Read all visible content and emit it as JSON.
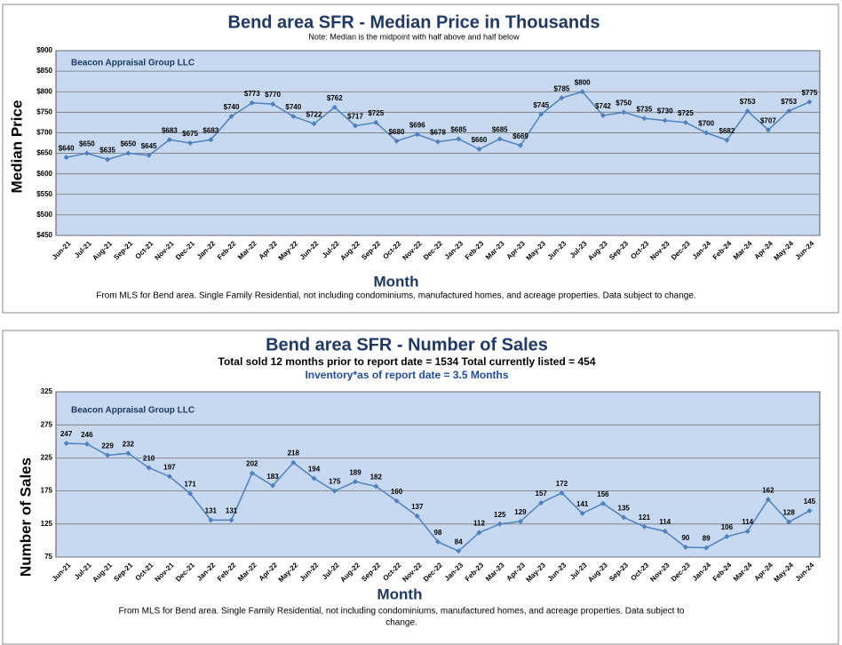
{
  "chart_data": [
    {
      "type": "line",
      "title": "Bend area SFR - Median Price in Thousands",
      "subtitle": "Note: Median is the midpoint with half above and half below",
      "watermark": "Beacon Appraisal Group LLC",
      "ylabel": "Median Price",
      "xlabel": "Month",
      "footnote": "From MLS for Bend area.  Single Family Residential, not including condominiums, manufactured homes, and acreage properties.  Data subject to change.",
      "categories": [
        "Jun-21",
        "Jul-21",
        "Aug-21",
        "Sep-21",
        "Oct-21",
        "Nov-21",
        "Dec-21",
        "Jan-22",
        "Feb-22",
        "Mar-22",
        "Apr-22",
        "May-22",
        "Jun-22",
        "Jul-22",
        "Aug-22",
        "Sep-22",
        "Oct-22",
        "Nov-22",
        "Dec-22",
        "Jan-23",
        "Feb-23",
        "Mar-23",
        "Apr-23",
        "May-23",
        "Jun-23",
        "Jul-23",
        "Aug-23",
        "Sep-23",
        "Oct-23",
        "Nov-23",
        "Dec-23",
        "Jan-24",
        "Feb-24",
        "Mar-24",
        "Apr-24",
        "May-24",
        "Jun-24"
      ],
      "values": [
        640,
        650,
        635,
        650,
        645,
        683,
        675,
        683,
        740,
        773,
        770,
        740,
        722,
        762,
        717,
        725,
        680,
        696,
        678,
        685,
        660,
        685,
        669,
        745,
        785,
        800,
        742,
        750,
        735,
        730,
        725,
        700,
        682,
        753,
        707,
        753,
        775
      ],
      "value_labels": [
        "$640",
        "$650",
        "$635",
        "$650",
        "$645",
        "$683",
        "$675",
        "$683",
        "$740",
        "$773",
        "$770",
        "$740",
        "$722",
        "$762",
        "$717",
        "$725",
        "$680",
        "$696",
        "$678",
        "$685",
        "$660",
        "$685",
        "$669",
        "$745",
        "$785",
        "$800",
        "$742",
        "$750",
        "$735",
        "$730",
        "$725",
        "$700",
        "$682",
        "$753",
        "$707",
        "$753",
        "$775"
      ],
      "color": "#4f81bd",
      "ylim": [
        450,
        900
      ],
      "yticks": [
        {
          "value": 450,
          "label": "$450"
        },
        {
          "value": 500,
          "label": "$500"
        },
        {
          "value": 550,
          "label": "$550"
        },
        {
          "value": 600,
          "label": "$600"
        },
        {
          "value": 650,
          "label": "$650"
        },
        {
          "value": 700,
          "label": "$700"
        },
        {
          "value": 750,
          "label": "$750"
        },
        {
          "value": 800,
          "label": "$800"
        },
        {
          "value": 850,
          "label": "$850"
        },
        {
          "value": 900,
          "label": "$900"
        }
      ],
      "grid": true
    },
    {
      "type": "line",
      "title": "Bend area SFR - Number of Sales",
      "subtitle": [
        "Total sold 12 months prior to report date = 1534 Total currently listed =  454",
        "Inventory*as of report date = 3.5  Months"
      ],
      "watermark": "Beacon Appraisal Group LLC",
      "ylabel": "Number of Sales",
      "xlabel": "Month",
      "footnote": [
        "From MLS for Bend area.  Single Family Residential, not including condominiums, manufactured homes, and acreage properties.  Data subject to",
        "change."
      ],
      "categories": [
        "Jun-21",
        "Jul-21",
        "Aug-21",
        "Sep-21",
        "Oct-21",
        "Nov-21",
        "Dec-21",
        "Jan-22",
        "Feb-22",
        "Mar-22",
        "Apr-22",
        "May-22",
        "Jun-22",
        "Jul-22",
        "Aug-22",
        "Sep-22",
        "Oct-22",
        "Nov-22",
        "Dec-22",
        "Jan-23",
        "Feb-23",
        "Mar-23",
        "Apr-23",
        "May-23",
        "Jun-23",
        "Jul-23",
        "Aug-23",
        "Sep-23",
        "Oct-23",
        "Nov-23",
        "Dec-23",
        "Jan-24",
        "Feb-24",
        "Mar-24",
        "Apr-24",
        "May-24",
        "Jun-24"
      ],
      "values": [
        247,
        246,
        229,
        232,
        210,
        197,
        171,
        131,
        131,
        202,
        183,
        218,
        194,
        175,
        189,
        182,
        160,
        137,
        98,
        84,
        112,
        125,
        129,
        157,
        172,
        141,
        156,
        135,
        121,
        114,
        90,
        89,
        106,
        114,
        162,
        128,
        145
      ],
      "color": "#4f81bd",
      "ylim": [
        75,
        325
      ],
      "yticks": [
        75,
        125,
        175,
        225,
        275,
        325
      ],
      "grid": true
    }
  ]
}
